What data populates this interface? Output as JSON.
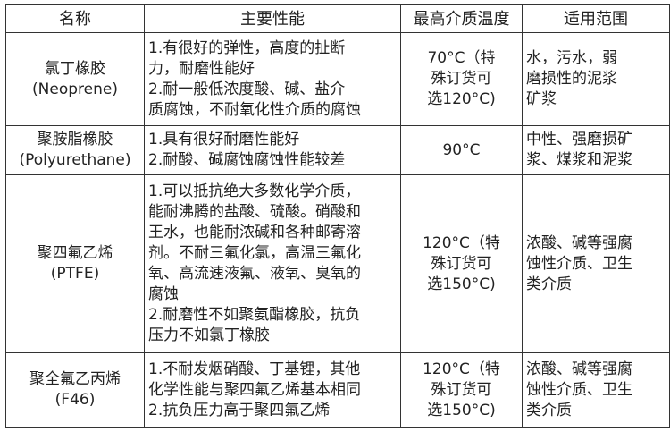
{
  "headers": [
    "名称",
    "主要性能",
    "最高介质温度",
    "适用范围"
  ],
  "rows": [
    {
      "name": [
        "氯丁橡胶",
        "(Neoprene)"
      ],
      "performance": [
        "1.有很好的弹性，高度的扯断",
        "力，耐磨性能好",
        "2.耐一般低浓度酸、碱、盐介",
        "质腐蚀，不耐氧化性介质的腐蚀"
      ],
      "max_temp": [
        "70°C（特",
        "殊订货可",
        "选120°C)"
      ],
      "application": [
        "水，污水，弱",
        "磨损性的泥浆",
        "矿浆"
      ]
    },
    {
      "name": [
        "聚胺脂橡胶",
        "(Polyurethane)"
      ],
      "performance": [
        "1.具有很好耐磨性能好",
        "2.耐酸、碱腐蚀腐蚀性能较差"
      ],
      "max_temp": [
        "90°C"
      ],
      "application": [
        "中性、强磨损矿",
        "浆、煤浆和泥浆"
      ]
    },
    {
      "name": [
        "聚四氟乙烯",
        "(PTFE)"
      ],
      "performance": [
        "1.可以抵抗绝大多数化学介质，",
        "能耐沸腾的盐酸、硫酸。硝酸和",
        "王水，也能耐浓碱和各种邮寄溶",
        "剂。不耐三氟化氯，高温三氟化",
        "氧、高流速液氟、液氧、臭氧的",
        "腐蚀",
        "2.耐磨性不如聚氨酯橡胶，抗负",
        "压力不如氯丁橡胶"
      ],
      "max_temp": [
        "120°C（特",
        "殊订货可",
        "选150°C)"
      ],
      "application": [
        "浓酸、碱等强腐",
        "蚀性介质、卫生",
        "类介质"
      ]
    },
    {
      "name": [
        "聚全氟乙丙烯",
        "(F46)"
      ],
      "performance": [
        "1.不耐发烟硝酸、丁基锂，其他",
        "化学性能与聚四氟乙烯基本相同",
        "2.抗负压力高于聚四氟乙烯"
      ],
      "max_temp": [
        "120°C（特",
        "殊订货可",
        "选150°C)"
      ],
      "application": [
        "浓酸、碱等强腐",
        "蚀性介质、卫生",
        "类介质"
      ]
    }
  ]
}
